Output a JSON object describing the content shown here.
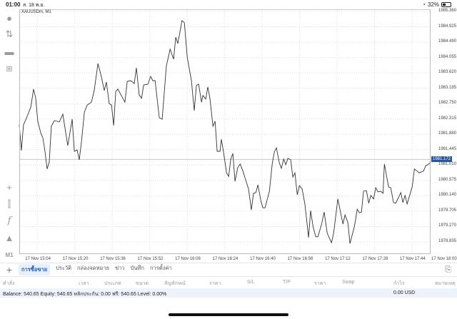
{
  "status": {
    "time": "01:00",
    "date": "ส. 18 พ.ย.",
    "battery": "32%",
    "battery_level": 0.32
  },
  "chart_title": "XAUUSDm, M1",
  "current_price": "1981.172",
  "left_toolbar": [
    "account-icon",
    "trade-icon",
    "chat-icon",
    "new-document-icon",
    "crosshair-icon",
    "candles-icon",
    "indicator-icon",
    "objects-icon"
  ],
  "timeframe": "M1",
  "chart_data": {
    "type": "line",
    "title": "XAUUSDm, M1",
    "x_unit": "minutes after 17 Nov 14:56",
    "ylim": [
      1978.835,
      1985.36
    ],
    "yticks": [
      "1985.360",
      "1984.925",
      "1984.490",
      "1984.055",
      "1983.620",
      "1983.185",
      "1982.750",
      "1982.315",
      "1981.880",
      "1981.445",
      "1981.010",
      "1980.575",
      "1980.140",
      "1979.705",
      "1979.270",
      "1978.835"
    ],
    "xticks": [
      {
        "m": 8,
        "label": "17 Nov 15:04"
      },
      {
        "m": 24,
        "label": "17 Nov 15:20"
      },
      {
        "m": 40,
        "label": "17 Nov 15:36"
      },
      {
        "m": 56,
        "label": "17 Nov 15:52"
      },
      {
        "m": 72,
        "label": "17 Nov 16:08"
      },
      {
        "m": 88,
        "label": "17 Nov 16:24"
      },
      {
        "m": 104,
        "label": "17 Nov 16:40"
      },
      {
        "m": 120,
        "label": "17 Nov 16:56"
      },
      {
        "m": 136,
        "label": "17 Nov 17:12"
      },
      {
        "m": 152,
        "label": "17 Nov 17:28"
      },
      {
        "m": 168,
        "label": "17 Nov 17:44"
      },
      {
        "m": 184,
        "label": "17 Nov 18:00"
      }
    ],
    "current": 1981.172,
    "points": [
      [
        0.3,
        1982.15
      ],
      [
        1.2,
        1981.42
      ],
      [
        2.1,
        1982.15
      ],
      [
        3.7,
        1982.39
      ],
      [
        5.2,
        1982.65
      ],
      [
        6.4,
        1983.16
      ],
      [
        7.3,
        1982.92
      ],
      [
        8.2,
        1982.25
      ],
      [
        9.5,
        1981.91
      ],
      [
        10.4,
        1981.78
      ],
      [
        11.3,
        1981.38
      ],
      [
        12.2,
        1980.9
      ],
      [
        13.1,
        1981.1
      ],
      [
        14.0,
        1982.11
      ],
      [
        15.3,
        1982.27
      ],
      [
        17.4,
        1982.23
      ],
      [
        18.9,
        1982.45
      ],
      [
        21.0,
        1981.56
      ],
      [
        22.9,
        1982.31
      ],
      [
        23.8,
        1981.4
      ],
      [
        25.0,
        1981.44
      ],
      [
        25.9,
        1981.16
      ],
      [
        26.8,
        1981.64
      ],
      [
        28.1,
        1982.51
      ],
      [
        29.3,
        1982.71
      ],
      [
        31.1,
        1982.79
      ],
      [
        32.3,
        1983.12
      ],
      [
        33.9,
        1983.89
      ],
      [
        35.4,
        1983.5
      ],
      [
        36.6,
        1983.12
      ],
      [
        37.5,
        1983.36
      ],
      [
        38.7,
        1982.75
      ],
      [
        39.7,
        1982.71
      ],
      [
        40.6,
        1982.13
      ],
      [
        41.5,
        1983.1
      ],
      [
        42.4,
        1983.16
      ],
      [
        45.4,
        1982.79
      ],
      [
        46.4,
        1983.38
      ],
      [
        47.9,
        1983.4
      ],
      [
        49.4,
        1983.32
      ],
      [
        50.3,
        1983.76
      ],
      [
        51.5,
        1983.0
      ],
      [
        52.5,
        1982.9
      ],
      [
        53.4,
        1983.28
      ],
      [
        55.2,
        1983.3
      ],
      [
        56.4,
        1983.52
      ],
      [
        57.3,
        1983.4
      ],
      [
        58.3,
        1983.4
      ],
      [
        60.1,
        1982.35
      ],
      [
        61.3,
        1982.31
      ],
      [
        63.1,
        1983.82
      ],
      [
        64.7,
        1984.29
      ],
      [
        66.2,
        1984.01
      ],
      [
        67.1,
        1984.63
      ],
      [
        68.0,
        1984.45
      ],
      [
        69.8,
        1985.1
      ],
      [
        70.8,
        1985.04
      ],
      [
        72.0,
        1984.07
      ],
      [
        73.8,
        1983.4
      ],
      [
        75.0,
        1982.55
      ],
      [
        75.9,
        1983.26
      ],
      [
        76.9,
        1983.3
      ],
      [
        78.1,
        1982.79
      ],
      [
        78.7,
        1982.98
      ],
      [
        79.9,
        1982.88
      ],
      [
        80.8,
        1983.22
      ],
      [
        81.7,
        1982.9
      ],
      [
        83.0,
        1982.11
      ],
      [
        83.9,
        1982.25
      ],
      [
        84.8,
        1981.4
      ],
      [
        86.0,
        1981.4
      ],
      [
        86.6,
        1981.74
      ],
      [
        87.5,
        1981.38
      ],
      [
        88.8,
        1980.79
      ],
      [
        89.7,
        1980.69
      ],
      [
        90.6,
        1981.18
      ],
      [
        91.5,
        1981.34
      ],
      [
        92.4,
        1980.55
      ],
      [
        93.6,
        1980.94
      ],
      [
        94.6,
        1981.04
      ],
      [
        95.8,
        1980.84
      ],
      [
        98.2,
        1980.33
      ],
      [
        99.4,
        1979.74
      ],
      [
        100.3,
        1980.21
      ],
      [
        101.3,
        1980.23
      ],
      [
        102.2,
        1980.45
      ],
      [
        103.4,
        1980.01
      ],
      [
        104.3,
        1979.8
      ],
      [
        105.2,
        1979.8
      ],
      [
        107.1,
        1980.27
      ],
      [
        108.3,
        1981.04
      ],
      [
        109.2,
        1981.38
      ],
      [
        110.1,
        1981.5
      ],
      [
        111.3,
        1981.08
      ],
      [
        112.2,
        1980.92
      ],
      [
        113.2,
        1981.18
      ],
      [
        114.1,
        1981.02
      ],
      [
        115.0,
        1981.2
      ],
      [
        116.2,
        1981.16
      ],
      [
        117.1,
        1980.67
      ],
      [
        118.0,
        1980.79
      ],
      [
        119.0,
        1980.17
      ],
      [
        119.9,
        1980.43
      ],
      [
        121.1,
        1980.33
      ],
      [
        122.3,
        1979.89
      ],
      [
        123.8,
        1978.96
      ],
      [
        124.7,
        1979.72
      ],
      [
        125.7,
        1979.28
      ],
      [
        126.9,
        1978.98
      ],
      [
        127.8,
        1978.98
      ],
      [
        129.3,
        1979.32
      ],
      [
        130.5,
        1979.68
      ],
      [
        131.8,
        1979.08
      ],
      [
        133.6,
        1978.81
      ],
      [
        134.5,
        1979.08
      ],
      [
        136.3,
        1980.05
      ],
      [
        138.5,
        1979.34
      ],
      [
        139.4,
        1979.6
      ],
      [
        140.6,
        1979.38
      ],
      [
        141.5,
        1978.79
      ],
      [
        143.4,
        1979.28
      ],
      [
        144.6,
        1979.76
      ],
      [
        145.5,
        1979.66
      ],
      [
        146.4,
        1979.68
      ],
      [
        147.3,
        1980.27
      ],
      [
        148.5,
        1980.29
      ],
      [
        149.5,
        1979.93
      ],
      [
        150.4,
        1980.15
      ],
      [
        151.6,
        1980.05
      ],
      [
        152.5,
        1980.37
      ],
      [
        153.4,
        1980.25
      ],
      [
        154.6,
        1980.27
      ],
      [
        155.6,
        1980.21
      ],
      [
        156.2,
        1981.04
      ],
      [
        158.0,
        1980.39
      ],
      [
        158.9,
        1980.37
      ],
      [
        160.1,
        1979.95
      ],
      [
        161.0,
        1979.93
      ],
      [
        163.2,
        1980.23
      ],
      [
        164.1,
        1979.95
      ],
      [
        165.0,
        1980.15
      ],
      [
        165.9,
        1979.91
      ],
      [
        168.1,
        1980.41
      ],
      [
        169.0,
        1980.9
      ],
      [
        171.1,
        1980.79
      ],
      [
        172.9,
        1980.84
      ],
      [
        173.9,
        1981.0
      ],
      [
        174.8,
        1981.02
      ],
      [
        176.0,
        1981.1
      ]
    ]
  },
  "tabs": [
    {
      "label": "การซื้อขาย",
      "active": true
    },
    {
      "label": "ประวัติ"
    },
    {
      "label": "กล่องจดหมาย"
    },
    {
      "label": "ข่าว"
    },
    {
      "label": "บันทึก"
    },
    {
      "label": "การตั้งค่า"
    }
  ],
  "table_headers": [
    "คำสั่ง",
    "เวลา",
    "ประเภท",
    "ขนาด",
    "สัญลักษณ์",
    "ราคา",
    "S/L",
    "T/P",
    "ราคา",
    "Swap",
    "กำไร",
    "หมายเหตุ"
  ],
  "balance_line": "Balance: 540.65 Equity: 540.65 หลักประกัน: 0.00 ฟรี: 540.65 Level: 0.00%",
  "profit_total": "0.00  USD"
}
